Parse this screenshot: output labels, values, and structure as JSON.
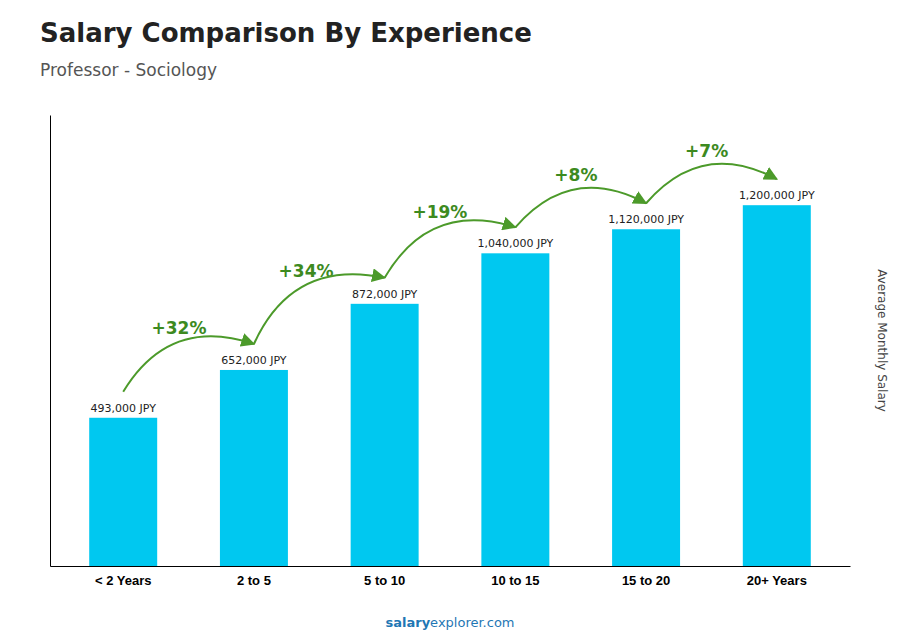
{
  "chart_data": {
    "type": "bar",
    "title": "Salary Comparison By Experience",
    "subtitle": "Professor - Sociology",
    "ylabel": "Average Monthly Salary",
    "categories": [
      "< 2 Years",
      "2 to 5",
      "5 to 10",
      "10 to 15",
      "15 to 20",
      "20+ Years"
    ],
    "values": [
      493000,
      652000,
      872000,
      1040000,
      1120000,
      1200000
    ],
    "value_labels": [
      "493,000 JPY",
      "652,000 JPY",
      "872,000 JPY",
      "1,040,000 JPY",
      "1,120,000 JPY",
      "1,200,000 JPY"
    ],
    "data_labels": true,
    "color": "#00c8f0",
    "ylim": [
      0,
      1500000
    ],
    "tick_labels": "x",
    "grid": false,
    "annotations": [
      {
        "text": "+32%",
        "from": "< 2 Years",
        "to": "2 to 5"
      },
      {
        "text": "+34%",
        "from": "2 to 5",
        "to": "5 to 10"
      },
      {
        "text": "+19%",
        "from": "5 to 10",
        "to": "10 to 15"
      },
      {
        "text": "+8%",
        "from": "10 to 15",
        "to": "15 to 20"
      },
      {
        "text": "+7%",
        "from": "15 to 20",
        "to": "20+ Years"
      }
    ],
    "footer": [
      "salary",
      "explorer.com"
    ]
  }
}
